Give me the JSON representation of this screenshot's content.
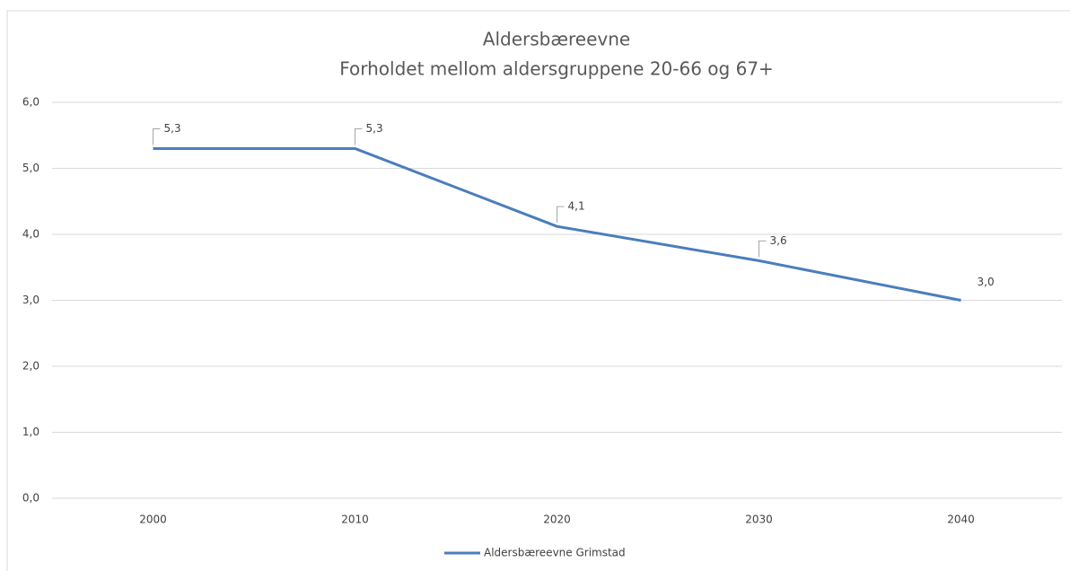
{
  "chart_data": {
    "type": "line",
    "title": "Aldersbæreevne",
    "subtitle": "Forholdet mellom aldersgruppene 20-66 og 67+",
    "categories": [
      "2000",
      "2010",
      "2020",
      "2030",
      "2040"
    ],
    "series": [
      {
        "name": "Aldersbæreevne Grimstad",
        "color": "#4a7ebb",
        "values": [
          5.3,
          5.3,
          4.12,
          3.6,
          3.0
        ],
        "value_labels": [
          "5,3",
          "5,3",
          "4,1",
          "3,6",
          "3,0"
        ]
      }
    ],
    "ylim": [
      0,
      6
    ],
    "yticks": [
      {
        "value": 0,
        "label": "0,0"
      },
      {
        "value": 1,
        "label": "1,0"
      },
      {
        "value": 2,
        "label": "2,0"
      },
      {
        "value": 3,
        "label": "3,0"
      },
      {
        "value": 4,
        "label": "4,0"
      },
      {
        "value": 5,
        "label": "5,0"
      },
      {
        "value": 6,
        "label": "6,0"
      }
    ],
    "grid": true,
    "legend": "bottom"
  }
}
